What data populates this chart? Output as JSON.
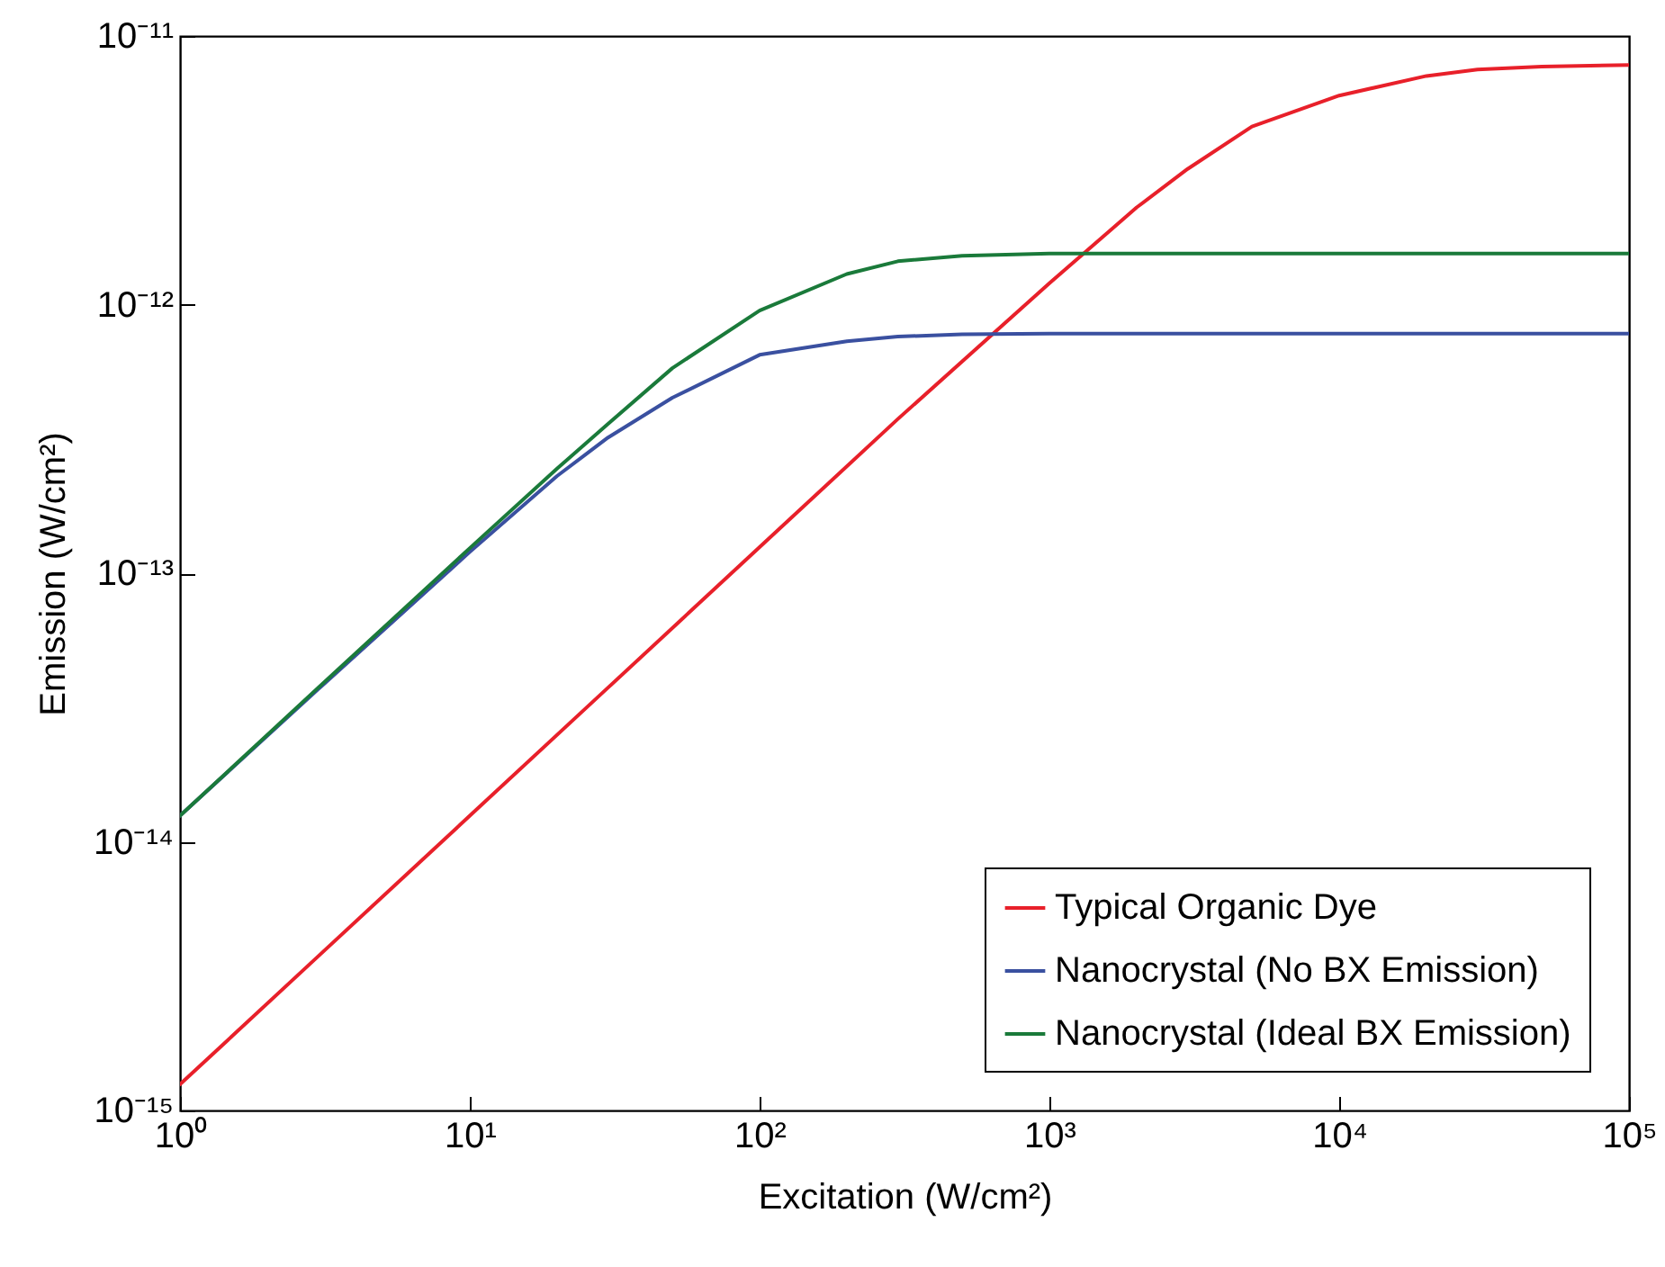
{
  "chart_data": {
    "type": "line",
    "xlabel": "Excitation (W/cm²)",
    "ylabel": "Emission (W/cm²)",
    "log": "xy",
    "legend": "bottom right",
    "grid": false,
    "xlim": [
      1,
      100000
    ],
    "ylim": [
      1e-15,
      1e-11
    ],
    "xticks": [
      {
        "value": 1,
        "label": "10⁰"
      },
      {
        "value": 10,
        "label": "10¹"
      },
      {
        "value": 100,
        "label": "10²"
      },
      {
        "value": 1000,
        "label": "10³"
      },
      {
        "value": 10000,
        "label": "10⁴"
      },
      {
        "value": 100000,
        "label": "10⁵"
      }
    ],
    "yticks": [
      {
        "value": 1e-15,
        "label": "10⁻¹⁵"
      },
      {
        "value": 1e-14,
        "label": "10⁻¹⁴"
      },
      {
        "value": 1e-13,
        "label": "10⁻¹³"
      },
      {
        "value": 1e-12,
        "label": "10⁻¹²"
      },
      {
        "value": 1e-11,
        "label": "10⁻¹¹"
      }
    ],
    "series": [
      {
        "name": "Typical Organic Dye",
        "color": "#e8202a",
        "x": [
          1,
          3,
          10,
          30,
          100,
          300,
          1000,
          2000,
          3000,
          5000,
          10000,
          20000,
          30000,
          50000,
          100000
        ],
        "values": [
          1.25e-15,
          3.75e-15,
          1.25e-14,
          3.75e-14,
          1.25e-13,
          3.75e-13,
          1.2e-12,
          2.3e-12,
          3.2e-12,
          4.6e-12,
          6e-12,
          7.1e-12,
          7.5e-12,
          7.7e-12,
          7.8e-12
        ]
      },
      {
        "name": "Nanocrystal (No BX Emission)",
        "color": "#3a50a0",
        "x": [
          1,
          3,
          10,
          20,
          30,
          50,
          100,
          200,
          300,
          500,
          1000,
          100000
        ],
        "values": [
          1.25e-14,
          3.7e-14,
          1.2e-13,
          2.3e-13,
          3.2e-13,
          4.5e-13,
          6.5e-13,
          7.3e-13,
          7.6e-13,
          7.75e-13,
          7.8e-13,
          7.8e-13
        ]
      },
      {
        "name": "Nanocrystal (Ideal BX Emission)",
        "color": "#1a7a3a",
        "x": [
          1,
          3,
          10,
          20,
          30,
          50,
          100,
          200,
          300,
          500,
          1000,
          100000
        ],
        "values": [
          1.25e-14,
          3.75e-14,
          1.24e-13,
          2.45e-13,
          3.6e-13,
          5.8e-13,
          9.5e-13,
          1.3e-12,
          1.45e-12,
          1.52e-12,
          1.55e-12,
          1.55e-12
        ]
      }
    ]
  }
}
